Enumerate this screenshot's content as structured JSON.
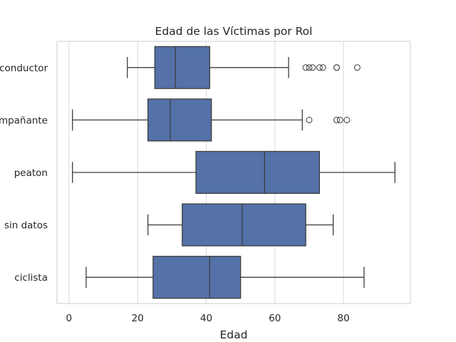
{
  "chart_data": {
    "type": "box",
    "orientation": "horizontal",
    "title": "Edad de las Víctimas por Rol",
    "xlabel": "Edad",
    "ylabel": "",
    "xlim": [
      -3.5,
      99.5
    ],
    "xticks": [
      0,
      20,
      40,
      60,
      80
    ],
    "grid": true,
    "box_color": "#5471a8",
    "line_color": "#3d3d3d",
    "categories": [
      "conductor",
      "acompañante",
      "peaton",
      "sin datos",
      "ciclista"
    ],
    "tick_labels": [
      "conductor",
      "mpañante",
      "peaton",
      "sin datos",
      "ciclista"
    ],
    "boxes": [
      {
        "name": "conductor",
        "whisker_low": 17,
        "q1": 25,
        "median": 31,
        "q3": 41,
        "whisker_high": 64,
        "outliers": [
          69,
          70,
          71,
          73,
          74,
          78,
          78,
          84
        ]
      },
      {
        "name": "acompañante",
        "whisker_low": 1,
        "q1": 23,
        "median": 29.5,
        "q3": 41.5,
        "whisker_high": 68,
        "outliers": [
          70,
          78,
          79,
          81
        ]
      },
      {
        "name": "peaton",
        "whisker_low": 1,
        "q1": 37,
        "median": 57,
        "q3": 73,
        "whisker_high": 95,
        "outliers": []
      },
      {
        "name": "sin datos",
        "whisker_low": 23,
        "q1": 33,
        "median": 50.5,
        "q3": 69,
        "whisker_high": 77,
        "outliers": []
      },
      {
        "name": "ciclista",
        "whisker_low": 5,
        "q1": 24.5,
        "median": 41,
        "q3": 50,
        "whisker_high": 86,
        "outliers": []
      }
    ]
  }
}
